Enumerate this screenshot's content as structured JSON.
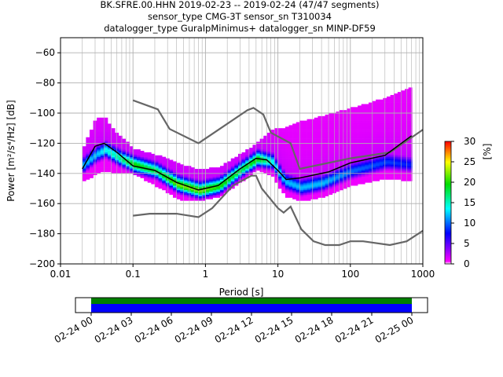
{
  "chart_data": {
    "type": "heatmap",
    "title_lines": [
      "BK.SFRE.00.HHN   2019-02-23 -- 2019-02-24  (47/47 segments)",
      "sensor_type CMG-3T sensor_sn T310034",
      "datalogger_type GuralpMinimus+ datalogger_sn MINP-DF59"
    ],
    "xlabel": "Period [s]",
    "ylabel": "Power [m²/s⁴/Hz] [dB]",
    "xscale": "log",
    "xlim": [
      0.01,
      1000
    ],
    "ylim": [
      -200,
      -50
    ],
    "xticks": [
      {
        "v": 0.01,
        "label": "0.01"
      },
      {
        "v": 0.1,
        "label": "0.1"
      },
      {
        "v": 1,
        "label": "1"
      },
      {
        "v": 10,
        "label": "10"
      },
      {
        "v": 100,
        "label": "100"
      },
      {
        "v": 1000,
        "label": "1000"
      }
    ],
    "yticks": [
      {
        "v": -60,
        "label": "−60"
      },
      {
        "v": -80,
        "label": "−80"
      },
      {
        "v": -100,
        "label": "−100"
      },
      {
        "v": -120,
        "label": "−120"
      },
      {
        "v": -140,
        "label": "−140"
      },
      {
        "v": -160,
        "label": "−160"
      },
      {
        "v": -180,
        "label": "−180"
      },
      {
        "v": -200,
        "label": "−200"
      }
    ],
    "grid": true,
    "colorbar": {
      "label": "[%]",
      "range": [
        0,
        30
      ],
      "ticks": [
        {
          "v": 0,
          "label": "0"
        },
        {
          "v": 5,
          "label": "5"
        },
        {
          "v": 10,
          "label": "10"
        },
        {
          "v": 15,
          "label": "15"
        },
        {
          "v": 20,
          "label": "20"
        },
        {
          "v": 25,
          "label": "25"
        },
        {
          "v": 30,
          "label": "30"
        }
      ]
    },
    "density_bands": [
      {
        "period": 0.02,
        "min": -145,
        "max": -122,
        "mode": -135,
        "peak": 12
      },
      {
        "period": 0.03,
        "min": -140,
        "max": -103,
        "mode": -128,
        "peak": 12
      },
      {
        "period": 0.04,
        "min": -138,
        "max": -104,
        "mode": -125,
        "peak": 14
      },
      {
        "period": 0.06,
        "min": -140,
        "max": -115,
        "mode": -130,
        "peak": 16
      },
      {
        "period": 0.1,
        "min": -140,
        "max": -124,
        "mode": -135,
        "peak": 20
      },
      {
        "period": 0.2,
        "min": -148,
        "max": -128,
        "mode": -139,
        "peak": 18
      },
      {
        "period": 0.4,
        "min": -157,
        "max": -134,
        "mode": -148,
        "peak": 22
      },
      {
        "period": 0.8,
        "min": -158,
        "max": -138,
        "mode": -152,
        "peak": 22
      },
      {
        "period": 1.5,
        "min": -155,
        "max": -136,
        "mode": -149,
        "peak": 20
      },
      {
        "period": 3,
        "min": -145,
        "max": -127,
        "mode": -138,
        "peak": 18
      },
      {
        "period": 5,
        "min": -137,
        "max": -120,
        "mode": -131,
        "peak": 20
      },
      {
        "period": 8,
        "min": -142,
        "max": -111,
        "mode": -133,
        "peak": 14
      },
      {
        "period": 12,
        "min": -155,
        "max": -110,
        "mode": -146,
        "peak": 12
      },
      {
        "period": 20,
        "min": -158,
        "max": -106,
        "mode": -150,
        "peak": 12
      },
      {
        "period": 40,
        "min": -155,
        "max": -102,
        "mode": -147,
        "peak": 12
      },
      {
        "period": 100,
        "min": -148,
        "max": -97,
        "mode": -139,
        "peak": 10
      },
      {
        "period": 300,
        "min": -143,
        "max": -90,
        "mode": -133,
        "peak": 9
      },
      {
        "period": 700,
        "min": -145,
        "max": -83,
        "mode": -135,
        "peak": 8
      }
    ],
    "mean": [
      [
        0.02,
        -137
      ],
      [
        0.03,
        -122
      ],
      [
        0.04,
        -120
      ],
      [
        0.06,
        -126
      ],
      [
        0.1,
        -135
      ],
      [
        0.2,
        -138
      ],
      [
        0.4,
        -146
      ],
      [
        0.8,
        -151
      ],
      [
        1.5,
        -148
      ],
      [
        3,
        -137
      ],
      [
        5,
        -130
      ],
      [
        7,
        -131
      ],
      [
        10,
        -138
      ],
      [
        13,
        -144
      ],
      [
        20,
        -143
      ],
      [
        50,
        -139
      ],
      [
        100,
        -133
      ],
      [
        300,
        -128
      ],
      [
        700,
        -115
      ]
    ],
    "nhnm": [
      [
        0.1,
        -91.5
      ],
      [
        0.22,
        -97.5
      ],
      [
        0.32,
        -110.5
      ],
      [
        0.8,
        -120
      ],
      [
        3.8,
        -98
      ],
      [
        4.6,
        -96.5
      ],
      [
        6.3,
        -101
      ],
      [
        8,
        -113
      ],
      [
        15,
        -120
      ],
      [
        20,
        -137
      ],
      [
        100,
        -130
      ],
      [
        355,
        -126
      ],
      [
        1000,
        -111
      ]
    ],
    "nlnm": [
      [
        0.1,
        -168
      ],
      [
        0.17,
        -166.7
      ],
      [
        0.4,
        -166.7
      ],
      [
        0.8,
        -169
      ],
      [
        1.24,
        -163
      ],
      [
        2.4,
        -148
      ],
      [
        4.3,
        -141.5
      ],
      [
        5,
        -141.5
      ],
      [
        6,
        -150
      ],
      [
        10,
        -163
      ],
      [
        12,
        -166
      ],
      [
        15,
        -162
      ],
      [
        21,
        -177
      ],
      [
        31,
        -185
      ],
      [
        45,
        -187.5
      ],
      [
        70,
        -187.5
      ],
      [
        100,
        -185
      ],
      [
        150,
        -185
      ],
      [
        350,
        -187.5
      ],
      [
        600,
        -185
      ],
      [
        1000,
        -178
      ]
    ],
    "timeline": {
      "ticks": [
        "02-24 00",
        "02-24 03",
        "02-24 06",
        "02-24 09",
        "02-24 12",
        "02-24 15",
        "02-24 18",
        "02-24 21",
        "02-25 00"
      ],
      "coverage_fraction": [
        0,
        1
      ],
      "colors": {
        "data": "#0000ff",
        "processed": "#008000"
      }
    },
    "colors": {
      "mean": "#000000",
      "noise_models": "#666666",
      "grid": "#b0b0b0"
    }
  }
}
